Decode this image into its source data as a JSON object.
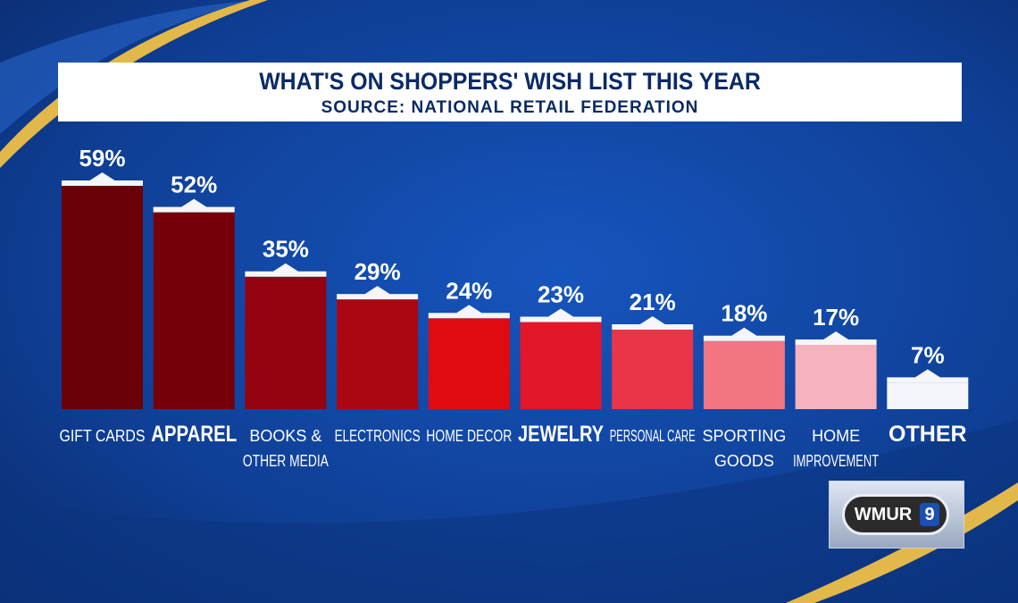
{
  "header": {
    "title": "WHAT'S ON SHOPPERS' WISH LIST THIS YEAR",
    "subtitle": "SOURCE: NATIONAL RETAIL FEDERATION"
  },
  "logo": {
    "text": "WMUR",
    "number": "9"
  },
  "colors": {
    "background": "#0f3f96",
    "gold_accent": "#e3b84a",
    "label_text": "#ffffff"
  },
  "chart_data": {
    "type": "bar",
    "title": "WHAT'S ON SHOPPERS' WISH LIST THIS YEAR",
    "subtitle": "SOURCE: NATIONAL RETAIL FEDERATION",
    "categories": [
      [
        "GIFT CARDS"
      ],
      [
        "APPAREL"
      ],
      [
        "BOOKS &",
        "OTHER MEDIA"
      ],
      [
        "ELECTRONICS"
      ],
      [
        "HOME DECOR"
      ],
      [
        "JEWELRY"
      ],
      [
        "PERSONAL CARE"
      ],
      [
        "SPORTING",
        "GOODS"
      ],
      [
        "HOME",
        "IMPROVEMENT"
      ],
      [
        "OTHER"
      ]
    ],
    "values": [
      59,
      52,
      35,
      29,
      24,
      23,
      21,
      18,
      17,
      7
    ],
    "value_labels": [
      "59%",
      "52%",
      "35%",
      "29%",
      "24%",
      "23%",
      "21%",
      "18%",
      "17%",
      "7%"
    ],
    "bar_colors": [
      "#6a0008",
      "#760009",
      "#930410",
      "#ab0712",
      "#e00b10",
      "#e3172a",
      "#ea3448",
      "#f27682",
      "#f6b3bd",
      "#f4f6fb"
    ],
    "xlabel": "",
    "ylabel": "",
    "ylim": [
      0,
      59
    ],
    "grid": false,
    "legend": "none"
  }
}
